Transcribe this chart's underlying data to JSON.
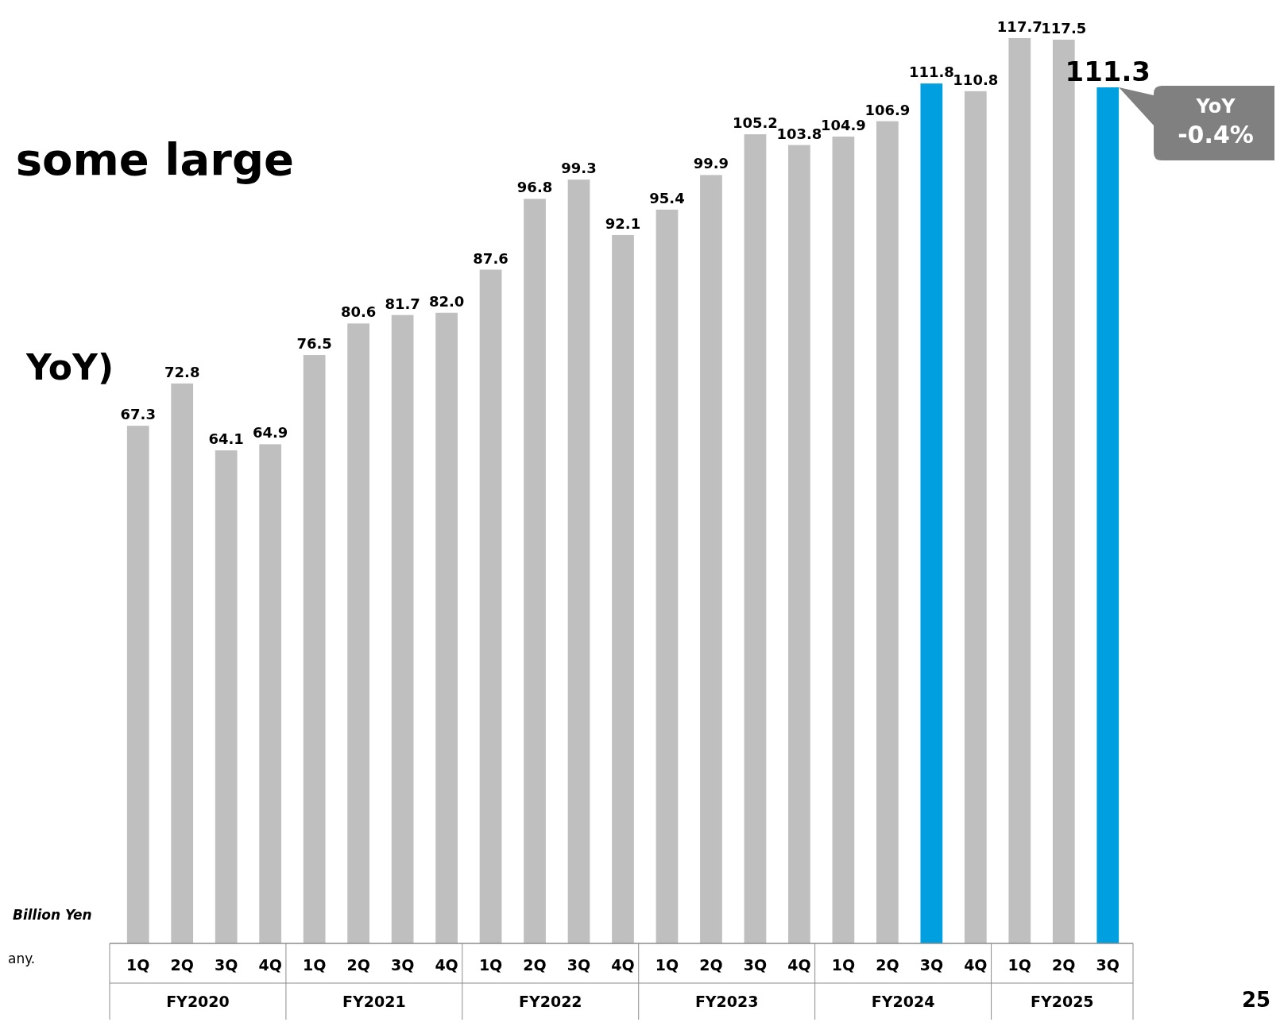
{
  "chart_data": {
    "type": "bar",
    "title": "some large",
    "subtitle": "YoY)",
    "ylabel": "Billion Yen",
    "tick_labels": "x",
    "categories": [
      "1Q",
      "2Q",
      "3Q",
      "4Q",
      "1Q",
      "2Q",
      "3Q",
      "4Q",
      "1Q",
      "2Q",
      "3Q",
      "4Q",
      "1Q",
      "2Q",
      "3Q",
      "4Q",
      "1Q",
      "2Q",
      "3Q",
      "4Q",
      "1Q",
      "2Q",
      "3Q"
    ],
    "series": [
      {
        "colors": [
          "#bfbfbf",
          "#bfbfbf",
          "#bfbfbf",
          "#bfbfbf",
          "#bfbfbf",
          "#bfbfbf",
          "#bfbfbf",
          "#bfbfbf",
          "#bfbfbf",
          "#bfbfbf",
          "#bfbfbf",
          "#bfbfbf",
          "#bfbfbf",
          "#bfbfbf",
          "#bfbfbf",
          "#bfbfbf",
          "#bfbfbf",
          "#bfbfbf",
          "#00a0e0",
          "#bfbfbf",
          "#bfbfbf",
          "#bfbfbf",
          "#00a0e0"
        ],
        "values": [
          67.3,
          72.8,
          64.1,
          64.9,
          76.5,
          80.6,
          81.7,
          82.0,
          87.6,
          96.8,
          99.3,
          92.1,
          95.4,
          99.9,
          105.2,
          103.8,
          104.9,
          106.9,
          111.8,
          110.8,
          117.7,
          117.5,
          111.3
        ],
        "value_labels": [
          "67.3",
          "72.8",
          "64.1",
          "64.9",
          "76.5",
          "80.6",
          "81.7",
          "82.0",
          "87.6",
          "96.8",
          "99.3",
          "92.1",
          "95.4",
          "99.9",
          "105.2",
          "103.8",
          "104.9",
          "106.9",
          "111.8",
          "110.8",
          "117.7",
          "117.5",
          "111.3"
        ]
      }
    ],
    "annotations": [
      "FY2020",
      "FY2021",
      "FY2022",
      "FY2023",
      "FY2024",
      "FY2025",
      "YoY\n-0.4%",
      "any.",
      "25"
    ]
  }
}
